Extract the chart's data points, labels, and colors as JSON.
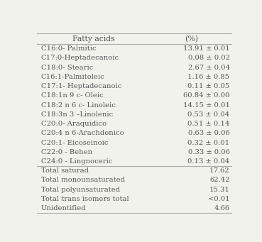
{
  "col_headers": [
    "Fatty acids",
    "(%)"
  ],
  "rows": [
    [
      "C16:0- Palmitic",
      "13.91 ± 0.01"
    ],
    [
      "C17:0-Heptadecanoic",
      "0.08 ± 0.02"
    ],
    [
      "C18:0- Stearic",
      "2.67 ± 0.04"
    ],
    [
      "C16:1-Palmitoleic",
      "1.16 ± 0.85"
    ],
    [
      "C17:1- Heptadecanoic",
      "0.11 ± 0.05"
    ],
    [
      "C18:1n 9 c- Oleic",
      "60.84 ± 0.00"
    ],
    [
      "C18:2 n 6 c- Linoleic",
      "14.15 ± 0.01"
    ],
    [
      "C18:3n 3 –Linolenic",
      "0.53 ± 0.04"
    ],
    [
      "C20:0- Araquidico",
      "0.51 ± 0.14"
    ],
    [
      "C20:4 n 6-Arachdonico",
      "0.63 ± 0.06"
    ],
    [
      "C20:1- Eicoseinoic",
      "0.32 ± 0.01"
    ],
    [
      "C22:0 - Behen",
      "0.33 ± 0.06"
    ],
    [
      "C24:0 - Lingnoceric",
      "0.13 ± 0.04"
    ],
    [
      "Total saturad",
      "17.62"
    ],
    [
      "Total monounsaturated",
      "62.42"
    ],
    [
      "Total polyunsaturated",
      "15.31"
    ],
    [
      "Total trans isomers total",
      "<0.01"
    ],
    [
      "Unidentified",
      "4.66"
    ]
  ],
  "bg_color": "#f2f2ed",
  "text_color": "#555555",
  "header_color": "#555555",
  "line_color": "#aaaaaa",
  "fontsize": 7.2,
  "header_fontsize": 7.8,
  "last_data_row_idx": 12
}
